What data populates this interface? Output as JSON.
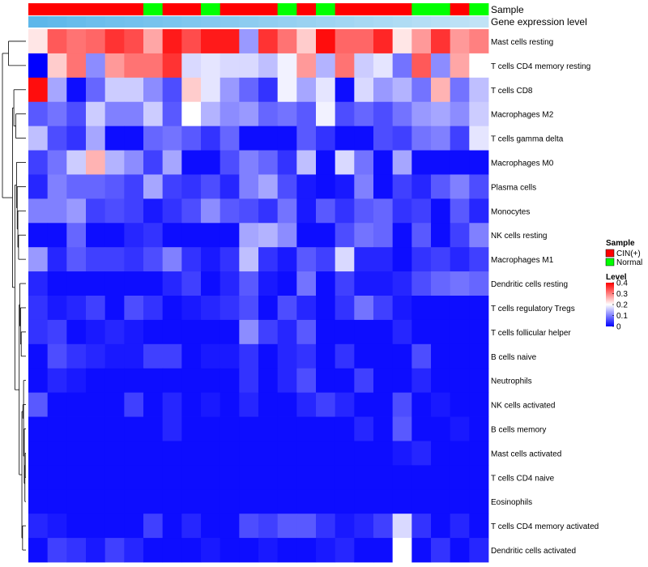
{
  "chart_data": {
    "type": "heatmap",
    "annotation_rows": [
      "Sample",
      "Gene expression level"
    ],
    "row_labels": [
      "Mast cells resting",
      "T cells CD4 memory resting",
      "T cells CD8",
      "Macrophages M2",
      "T cells gamma delta",
      "Macrophages M0",
      "Plasma cells",
      "Monocytes",
      "NK cells resting",
      "Macrophages M1",
      "Dendritic cells resting",
      "T cells regulatory  Tregs",
      "T cells follicular helper",
      "B cells naive",
      "Neutrophils",
      "NK cells activated",
      "B cells memory",
      "Mast cells activated",
      "T cells CD4 naive",
      "Eosinophils",
      "T cells CD4 memory activated",
      "Dendritic cells activated"
    ],
    "sample_groups": [
      "CIN(+)",
      "CIN(+)",
      "CIN(+)",
      "CIN(+)",
      "CIN(+)",
      "CIN(+)",
      "Normal",
      "CIN(+)",
      "CIN(+)",
      "Normal",
      "CIN(+)",
      "CIN(+)",
      "CIN(+)",
      "Normal",
      "CIN(+)",
      "Normal",
      "CIN(+)",
      "CIN(+)",
      "CIN(+)",
      "CIN(+)",
      "Normal",
      "Normal",
      "CIN(+)",
      "Normal"
    ],
    "expression_annotation": [
      0.95,
      0.92,
      0.88,
      0.85,
      0.82,
      0.8,
      0.77,
      0.74,
      0.71,
      0.68,
      0.65,
      0.62,
      0.59,
      0.56,
      0.53,
      0.5,
      0.47,
      0.44,
      0.41,
      0.38,
      0.35,
      0.32,
      0.29,
      0.26
    ],
    "values": [
      [
        0.22,
        0.33,
        0.31,
        0.32,
        0.36,
        0.34,
        0.27,
        0.38,
        0.34,
        0.38,
        0.38,
        0.12,
        0.36,
        0.31,
        0.24,
        0.39,
        0.32,
        0.32,
        0.37,
        0.22,
        0.28,
        0.36,
        0.28,
        0.3
      ],
      [
        0.0,
        0.24,
        0.31,
        0.11,
        0.28,
        0.31,
        0.31,
        0.36,
        0.17,
        0.18,
        0.17,
        0.17,
        0.15,
        0.19,
        0.28,
        0.14,
        0.31,
        0.16,
        0.18,
        0.09,
        0.33,
        0.11,
        0.27,
        0.2
      ],
      [
        0.39,
        0.13,
        0.01,
        0.08,
        0.16,
        0.16,
        0.11,
        0.06,
        0.24,
        0.18,
        0.12,
        0.08,
        0.04,
        0.19,
        0.13,
        0.18,
        0.01,
        0.17,
        0.12,
        0.14,
        0.09,
        0.26,
        0.09,
        0.15
      ],
      [
        0.07,
        0.09,
        0.06,
        0.16,
        0.1,
        0.1,
        0.16,
        0.07,
        0.2,
        0.14,
        0.11,
        0.12,
        0.08,
        0.09,
        0.07,
        0.19,
        0.06,
        0.08,
        0.06,
        0.09,
        0.12,
        0.13,
        0.11,
        0.16
      ],
      [
        0.15,
        0.06,
        0.04,
        0.13,
        0.01,
        0.01,
        0.08,
        0.09,
        0.07,
        0.04,
        0.08,
        0.01,
        0.01,
        0.01,
        0.07,
        0.04,
        0.01,
        0.01,
        0.06,
        0.05,
        0.09,
        0.1,
        0.05,
        0.18
      ],
      [
        0.05,
        0.09,
        0.16,
        0.26,
        0.14,
        0.11,
        0.05,
        0.13,
        0.01,
        0.01,
        0.06,
        0.1,
        0.08,
        0.04,
        0.15,
        0.01,
        0.17,
        0.09,
        0.01,
        0.13,
        0.01,
        0.01,
        0.01,
        0.01
      ],
      [
        0.03,
        0.1,
        0.08,
        0.08,
        0.07,
        0.05,
        0.13,
        0.05,
        0.04,
        0.06,
        0.03,
        0.1,
        0.13,
        0.06,
        0.02,
        0.01,
        0.02,
        0.1,
        0.01,
        0.05,
        0.03,
        0.07,
        0.1,
        0.06
      ],
      [
        0.1,
        0.1,
        0.12,
        0.05,
        0.06,
        0.05,
        0.02,
        0.04,
        0.06,
        0.11,
        0.07,
        0.06,
        0.04,
        0.09,
        0.02,
        0.07,
        0.04,
        0.07,
        0.08,
        0.04,
        0.05,
        0.01,
        0.07,
        0.03
      ],
      [
        0.01,
        0.01,
        0.08,
        0.01,
        0.01,
        0.03,
        0.04,
        0.01,
        0.01,
        0.01,
        0.01,
        0.13,
        0.14,
        0.11,
        0.01,
        0.01,
        0.06,
        0.09,
        0.08,
        0.01,
        0.07,
        0.01,
        0.05,
        0.1
      ],
      [
        0.12,
        0.03,
        0.07,
        0.05,
        0.05,
        0.04,
        0.06,
        0.1,
        0.04,
        0.02,
        0.04,
        0.15,
        0.04,
        0.02,
        0.07,
        0.05,
        0.17,
        0.03,
        0.03,
        0.01,
        0.04,
        0.05,
        0.03,
        0.05
      ],
      [
        0.03,
        0.01,
        0.01,
        0.01,
        0.01,
        0.01,
        0.01,
        0.03,
        0.05,
        0.01,
        0.03,
        0.07,
        0.02,
        0.01,
        0.09,
        0.01,
        0.05,
        0.02,
        0.02,
        0.03,
        0.06,
        0.08,
        0.09,
        0.08
      ],
      [
        0.04,
        0.02,
        0.03,
        0.05,
        0.01,
        0.06,
        0.04,
        0.01,
        0.02,
        0.03,
        0.04,
        0.06,
        0.01,
        0.06,
        0.03,
        0.01,
        0.04,
        0.09,
        0.05,
        0.02,
        0.01,
        0.01,
        0.01,
        0.01
      ],
      [
        0.04,
        0.05,
        0.01,
        0.02,
        0.03,
        0.02,
        0.01,
        0.01,
        0.01,
        0.01,
        0.01,
        0.11,
        0.05,
        0.03,
        0.07,
        0.01,
        0.01,
        0.01,
        0.01,
        0.03,
        0.01,
        0.01,
        0.01,
        0.01
      ],
      [
        0.01,
        0.06,
        0.04,
        0.03,
        0.02,
        0.02,
        0.05,
        0.05,
        0.01,
        0.02,
        0.02,
        0.04,
        0.01,
        0.03,
        0.04,
        0.01,
        0.04,
        0.01,
        0.01,
        0.01,
        0.06,
        0.01,
        0.01,
        0.01
      ],
      [
        0.01,
        0.03,
        0.02,
        0.01,
        0.01,
        0.01,
        0.01,
        0.01,
        0.01,
        0.01,
        0.01,
        0.04,
        0.01,
        0.03,
        0.06,
        0.01,
        0.01,
        0.05,
        0.01,
        0.01,
        0.03,
        0.01,
        0.01,
        0.01
      ],
      [
        0.07,
        0.01,
        0.01,
        0.01,
        0.01,
        0.05,
        0.01,
        0.03,
        0.01,
        0.02,
        0.01,
        0.03,
        0.01,
        0.01,
        0.03,
        0.05,
        0.03,
        0.01,
        0.01,
        0.06,
        0.01,
        0.02,
        0.01,
        0.01
      ],
      [
        0.01,
        0.01,
        0.01,
        0.01,
        0.01,
        0.01,
        0.01,
        0.03,
        0.01,
        0.01,
        0.01,
        0.01,
        0.01,
        0.01,
        0.01,
        0.01,
        0.01,
        0.03,
        0.01,
        0.07,
        0.01,
        0.01,
        0.02,
        0.01
      ],
      [
        0.01,
        0.01,
        0.01,
        0.01,
        0.01,
        0.01,
        0.01,
        0.01,
        0.01,
        0.01,
        0.01,
        0.01,
        0.01,
        0.01,
        0.01,
        0.01,
        0.01,
        0.01,
        0.01,
        0.02,
        0.03,
        0.01,
        0.01,
        0.01
      ],
      [
        0.01,
        0.01,
        0.01,
        0.01,
        0.01,
        0.01,
        0.01,
        0.01,
        0.01,
        0.01,
        0.01,
        0.01,
        0.01,
        0.01,
        0.01,
        0.01,
        0.01,
        0.01,
        0.01,
        0.01,
        0.01,
        0.01,
        0.01,
        0.01
      ],
      [
        0.01,
        0.01,
        0.01,
        0.01,
        0.01,
        0.01,
        0.01,
        0.01,
        0.01,
        0.01,
        0.01,
        0.01,
        0.01,
        0.01,
        0.01,
        0.01,
        0.01,
        0.01,
        0.01,
        0.01,
        0.01,
        0.01,
        0.01,
        0.01
      ],
      [
        0.03,
        0.02,
        0.01,
        0.01,
        0.01,
        0.01,
        0.05,
        0.01,
        0.03,
        0.01,
        0.01,
        0.06,
        0.05,
        0.07,
        0.07,
        0.04,
        0.02,
        0.03,
        0.05,
        0.17,
        0.04,
        0.01,
        0.03,
        0.01
      ],
      [
        0.01,
        0.05,
        0.04,
        0.02,
        0.05,
        0.03,
        0.01,
        0.01,
        0.01,
        0.02,
        0.01,
        0.01,
        0.02,
        0.01,
        0.01,
        0.02,
        0.03,
        0.01,
        0.01,
        0.2,
        0.01,
        0.04,
        0.01,
        0.03
      ]
    ],
    "scale": {
      "min": 0,
      "max": 0.4
    },
    "colors": {
      "low": "#0000ff",
      "mid": "#ffffff",
      "high": "#ff0000",
      "mid_value": 0.2,
      "cin": "#ff0000",
      "normal": "#00ff00",
      "expr_dark": "#56b4e9",
      "expr_light": "#e6f4fb",
      "dendrogram": "#000000"
    },
    "legend": {
      "sample_title": "Sample",
      "sample_entries": [
        "CIN(+)",
        "Normal"
      ],
      "level_title": "Level",
      "level_ticks": [
        "0.4",
        "0.3",
        "0.2",
        "0.1",
        "0"
      ],
      "level_tick_values": [
        0.4,
        0.3,
        0.2,
        0.1,
        0
      ]
    },
    "dendrogram_merges": [
      [
        17,
        18,
        0.02
      ],
      [
        -1,
        19,
        0.03
      ],
      [
        16,
        -2,
        0.05
      ],
      [
        14,
        -3,
        0.07
      ],
      [
        15,
        -4,
        0.09
      ],
      [
        20,
        21,
        0.1
      ],
      [
        -6,
        -5,
        0.12
      ],
      [
        12,
        13,
        0.14
      ],
      [
        11,
        -8,
        0.16
      ],
      [
        10,
        -9,
        0.18
      ],
      [
        -10,
        -7,
        0.2
      ],
      [
        8,
        9,
        0.22
      ],
      [
        7,
        -12,
        0.24
      ],
      [
        6,
        -13,
        0.26
      ],
      [
        5,
        -14,
        0.28
      ],
      [
        3,
        4,
        0.3
      ],
      [
        -15,
        -11,
        0.33
      ],
      [
        2,
        -16,
        0.36
      ],
      [
        -18,
        -17,
        0.4
      ],
      [
        0,
        1,
        0.52
      ],
      [
        -20,
        -19,
        0.7
      ]
    ]
  }
}
